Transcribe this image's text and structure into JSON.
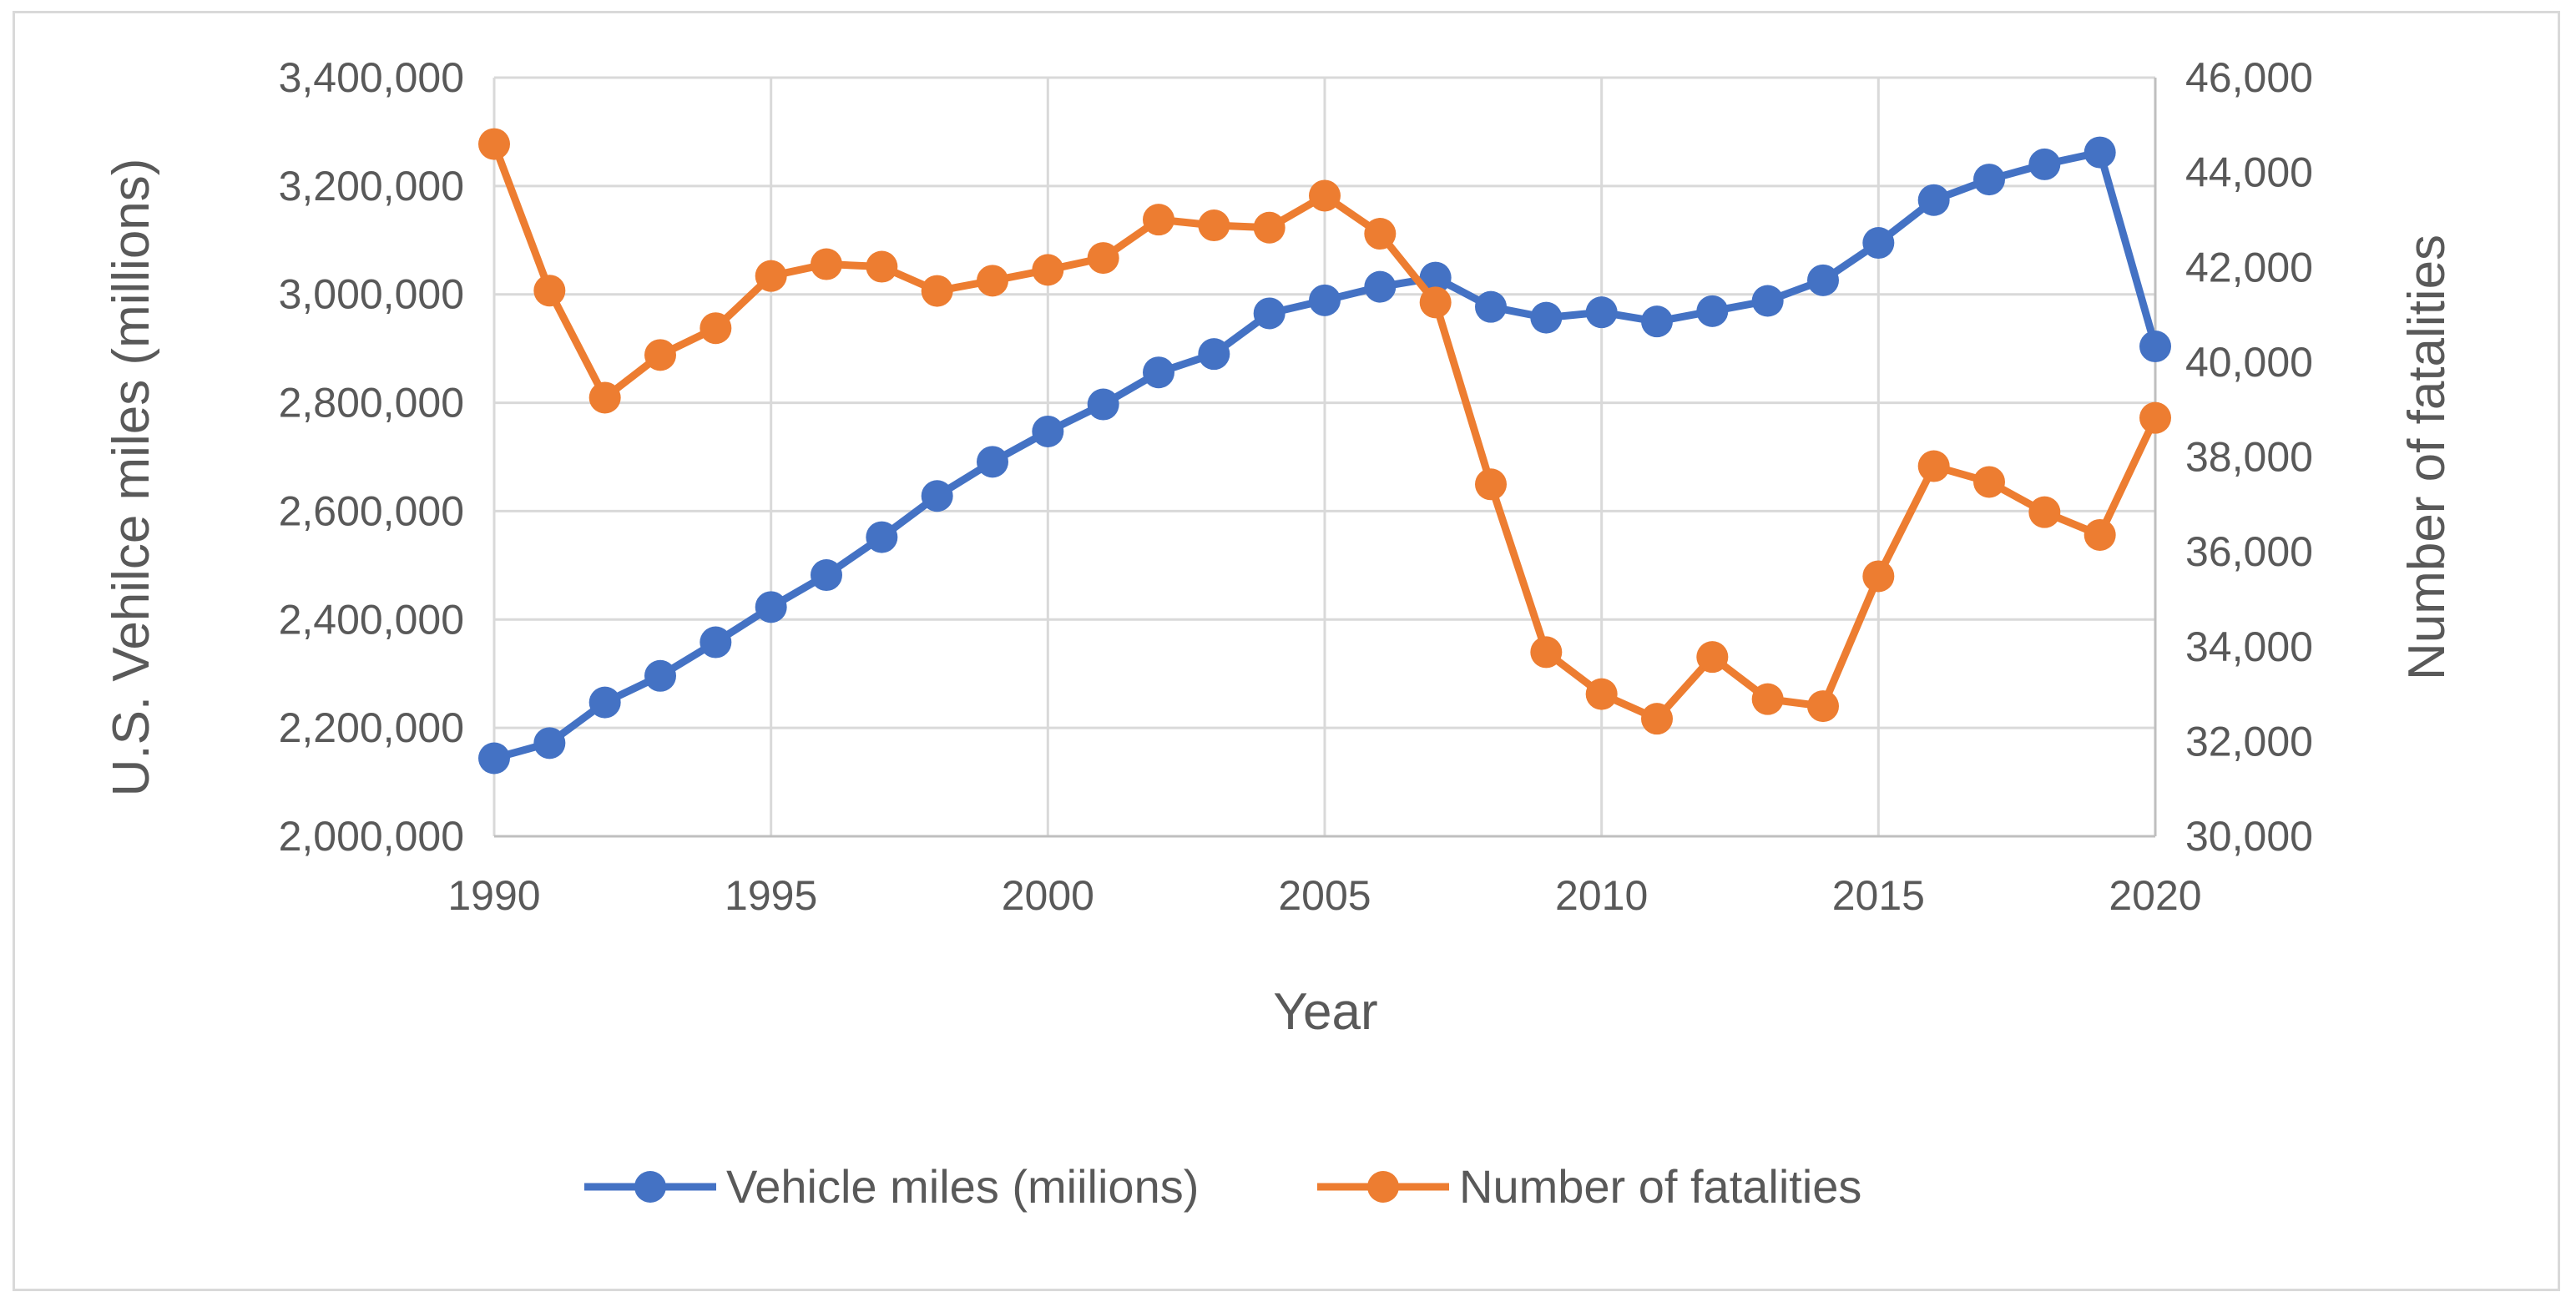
{
  "chart_data": {
    "type": "line",
    "title": "",
    "xlabel": "Year",
    "ylabel_left": "U.S. Vehilce miles (millions)",
    "ylabel_right": "Number of fatalities",
    "xlim": [
      1990,
      2020
    ],
    "x_ticks": [
      "1990",
      "1995",
      "2000",
      "2005",
      "2010",
      "2015",
      "2020"
    ],
    "ylim_left": [
      2000000,
      3400000
    ],
    "ylim_right": [
      30000,
      46000
    ],
    "y_ticks_left": [
      "2,000,000",
      "2,200,000",
      "2,400,000",
      "2,600,000",
      "2,800,000",
      "3,000,000",
      "3,200,000",
      "3,400,000"
    ],
    "y_ticks_right": [
      "30,000",
      "32,000",
      "34,000",
      "36,000",
      "38,000",
      "40,000",
      "42,000",
      "44,000",
      "46,000"
    ],
    "grid": true,
    "legend_position": "bottom",
    "x": [
      1990,
      1991,
      1992,
      1993,
      1994,
      1995,
      1996,
      1997,
      1998,
      1999,
      2000,
      2001,
      2002,
      2003,
      2004,
      2005,
      2006,
      2007,
      2008,
      2009,
      2010,
      2011,
      2012,
      2013,
      2014,
      2015,
      2016,
      2017,
      2018,
      2019,
      2020
    ],
    "series": [
      {
        "name": "Vehicle miles (miilions)",
        "axis": "left",
        "color": "#4472c4",
        "values": [
          2144000,
          2172000,
          2247000,
          2296000,
          2358000,
          2423000,
          2482000,
          2552000,
          2628000,
          2691000,
          2747000,
          2797000,
          2856000,
          2890000,
          2965000,
          2989000,
          3014000,
          3031000,
          2977000,
          2957000,
          2967000,
          2950000,
          2969000,
          2988000,
          3026000,
          3095000,
          3174000,
          3212000,
          3240000,
          3262000,
          2904000
        ]
      },
      {
        "name": "Number of fatalities",
        "axis": "right",
        "color": "#ed7d31",
        "values": [
          44599,
          41508,
          39250,
          40150,
          40716,
          41817,
          42065,
          42013,
          41501,
          41717,
          41945,
          42196,
          43005,
          42884,
          42836,
          43510,
          42708,
          41259,
          37423,
          33883,
          32999,
          32479,
          33782,
          32893,
          32744,
          35484,
          37806,
          37473,
          36835,
          36355,
          38824
        ]
      }
    ]
  }
}
